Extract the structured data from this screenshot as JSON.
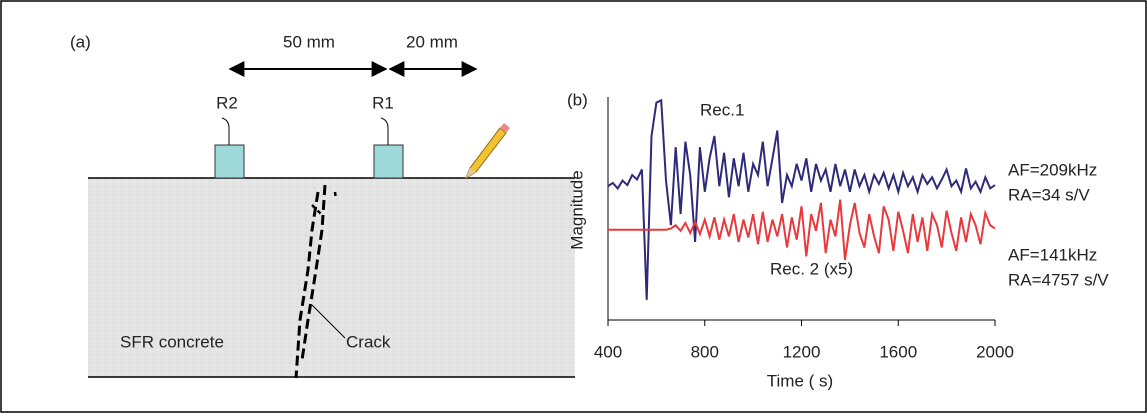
{
  "diagram": {
    "panel_label": "(a)",
    "dimension_1": "50 mm",
    "dimension_2": "20 mm",
    "sensor_1": "R2",
    "sensor_2": "R1",
    "material": "SFR concrete",
    "crack_label": "Crack"
  },
  "chart_data": {
    "type": "line",
    "panel_label": "(b)",
    "xlabel": "Time (  s)",
    "ylabel": "Magnitude",
    "x": [
      400,
      420,
      440,
      460,
      480,
      500,
      520,
      540,
      560,
      580,
      600,
      620,
      640,
      660,
      680,
      700,
      720,
      740,
      760,
      780,
      800,
      820,
      840,
      860,
      880,
      900,
      920,
      940,
      960,
      980,
      1000,
      1020,
      1040,
      1060,
      1080,
      1100,
      1120,
      1140,
      1160,
      1180,
      1200,
      1220,
      1240,
      1260,
      1280,
      1300,
      1320,
      1340,
      1360,
      1380,
      1400,
      1420,
      1440,
      1460,
      1480,
      1500,
      1520,
      1540,
      1560,
      1580,
      1600,
      1620,
      1640,
      1660,
      1680,
      1700,
      1720,
      1740,
      1760,
      1780,
      1800,
      1820,
      1840,
      1860,
      1880,
      1900,
      1920,
      1940,
      1960,
      1980,
      2000
    ],
    "series": [
      {
        "name": "Rec.1",
        "color": "#2e2a7a",
        "notes": [
          "AF=209kHz",
          "RA=34  s/V"
        ],
        "values": [
          2.0,
          2.3,
          1.8,
          2.5,
          2.1,
          3.0,
          2.6,
          3.5,
          -8.2,
          6.5,
          9.5,
          9.7,
          2.5,
          -1.5,
          5.5,
          -0.5,
          6,
          3,
          -3,
          5.5,
          1.5,
          4.5,
          6.5,
          2,
          5,
          1,
          4.5,
          2,
          5,
          1.5,
          4,
          3,
          6,
          2,
          4.5,
          7,
          0.5,
          3,
          2,
          4,
          2.5,
          4.5,
          1.5,
          4,
          2.5,
          3.5,
          1.5,
          4,
          2,
          3.5,
          1.5,
          3.5,
          2,
          3,
          1.5,
          3,
          2.2,
          3.2,
          1.8,
          3,
          1.5,
          3.2,
          2,
          2.8,
          1.5,
          3,
          2.2,
          2.8,
          1.8,
          2.6,
          3.5,
          2,
          2.5,
          1.5,
          3.6,
          1.8,
          2.4,
          1.5,
          2.8,
          1.8,
          2.1
        ]
      },
      {
        "name": "Rec. 2 (x5)",
        "color": "#e8393c",
        "notes": [
          "AF=141kHz",
          "RA=4757  s/V"
        ],
        "values": [
          -1.9,
          -1.9,
          -1.9,
          -1.9,
          -1.9,
          -1.9,
          -1.9,
          -1.9,
          -1.9,
          -1.9,
          -1.9,
          -1.9,
          -1.9,
          -1.8,
          -1.5,
          -2.0,
          -1.3,
          -2.2,
          -1.2,
          -2.3,
          -1.0,
          -2.5,
          -0.8,
          -2.8,
          -1.0,
          -2.5,
          -0.5,
          -3.0,
          -1.0,
          -2.6,
          -0.5,
          -3.2,
          -0.3,
          -3.0,
          -1.0,
          -2.5,
          -0.5,
          -3.5,
          -0.8,
          -2.8,
          0.2,
          -4.3,
          -0.5,
          -2.0,
          0.5,
          -4.0,
          -1.0,
          -2.5,
          0.8,
          -4.6,
          -1.5,
          0.5,
          -2.2,
          -3.5,
          -0.5,
          -2.5,
          -4.0,
          0.2,
          -1.0,
          -3.8,
          -0.3,
          -2.0,
          -4.0,
          -0.5,
          -3.0,
          -0.8,
          -3.8,
          -0.5,
          -1.5,
          -3.5,
          -0.2,
          -2.2,
          -3.8,
          -0.8,
          -3.0,
          -0.5,
          -1.5,
          -3.2,
          -0.4,
          -1.5,
          -1.8
        ]
      }
    ],
    "xlim": [
      400,
      2000
    ],
    "xticks": [
      400,
      800,
      1200,
      1600,
      2000
    ],
    "ylim": [
      -10,
      10
    ]
  }
}
